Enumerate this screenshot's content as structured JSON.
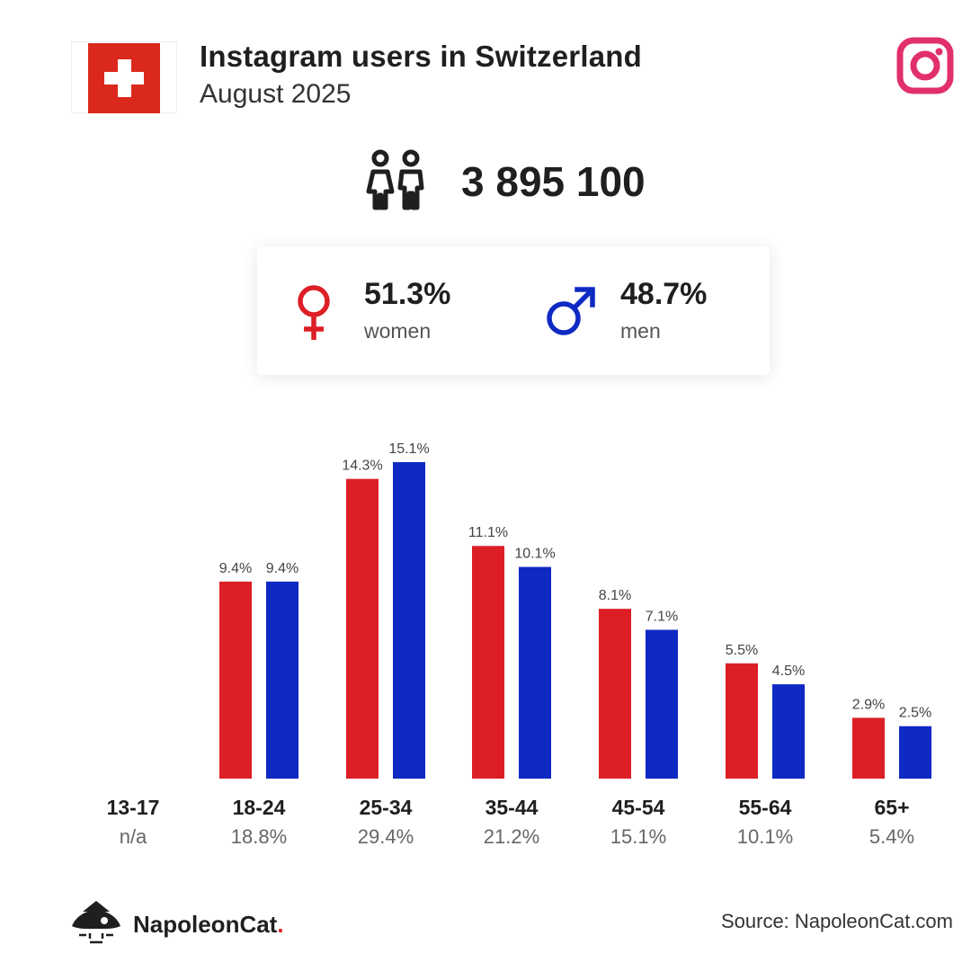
{
  "header": {
    "title": "Instagram users in Switzerland",
    "subtitle": "August 2025"
  },
  "icons": {
    "flag": "swiss-flag-icon",
    "platform": "instagram-icon",
    "users": "people-icon",
    "female": "female-symbol-icon",
    "male": "male-symbol-icon",
    "brand": "napoleoncat-logo-icon"
  },
  "total_users": "3 895 100",
  "gender": {
    "women": {
      "pct": "51.3%",
      "label": "women"
    },
    "men": {
      "pct": "48.7%",
      "label": "men"
    }
  },
  "colors": {
    "women": "#dc1f26",
    "men": "#0f29c3",
    "instagram": "#e1306c",
    "flag_red": "#da291c"
  },
  "chart_data": {
    "type": "bar",
    "categories": [
      "13-17",
      "18-24",
      "25-34",
      "35-44",
      "45-54",
      "55-64",
      "65+"
    ],
    "category_totals": [
      "n/a",
      "18.8%",
      "29.4%",
      "21.2%",
      "15.1%",
      "10.1%",
      "5.4%"
    ],
    "series": [
      {
        "name": "women",
        "values": [
          null,
          9.4,
          14.3,
          11.1,
          8.1,
          5.5,
          2.9
        ],
        "labels": [
          "",
          "9.4%",
          "14.3%",
          "11.1%",
          "8.1%",
          "5.5%",
          "2.9%"
        ]
      },
      {
        "name": "men",
        "values": [
          null,
          9.4,
          15.1,
          10.1,
          7.1,
          4.5,
          2.5
        ],
        "labels": [
          "",
          "9.4%",
          "15.1%",
          "10.1%",
          "7.1%",
          "4.5%",
          "2.5%"
        ]
      }
    ],
    "ylim": [
      0,
      15.1
    ],
    "grid": false,
    "legend": "none"
  },
  "footer": {
    "brand_name": "NapoleonCat",
    "brand_dot": ".",
    "source": "Source: NapoleonCat.com"
  }
}
